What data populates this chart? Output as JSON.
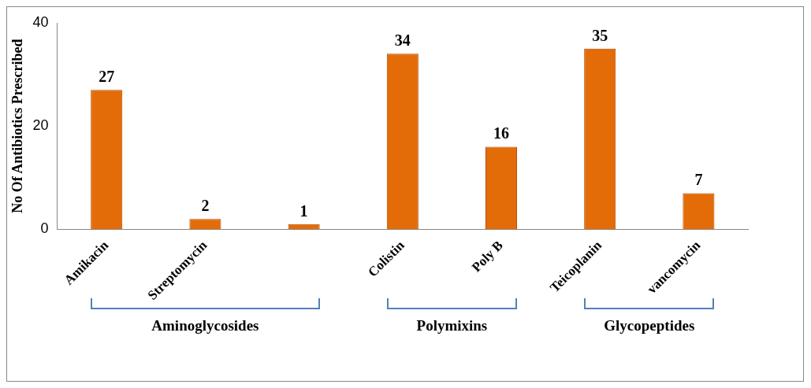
{
  "chart_data": {
    "type": "bar",
    "ylabel": "No Of Antibiotics Prescribed",
    "categories": [
      "Amikacin",
      "Streptomycin",
      null,
      "Colistin",
      "Poly B",
      "Teicoplanin",
      "vancomycin"
    ],
    "values": [
      27,
      2,
      1,
      34,
      16,
      35,
      7
    ],
    "color": "#e36c09",
    "ylim": [
      0,
      40
    ],
    "yticks": [
      0,
      20,
      40
    ],
    "grid": false,
    "data_labels": true,
    "annotations": [
      "Aminoglycosides",
      "Polymixins",
      "Glycopeptides"
    ]
  }
}
